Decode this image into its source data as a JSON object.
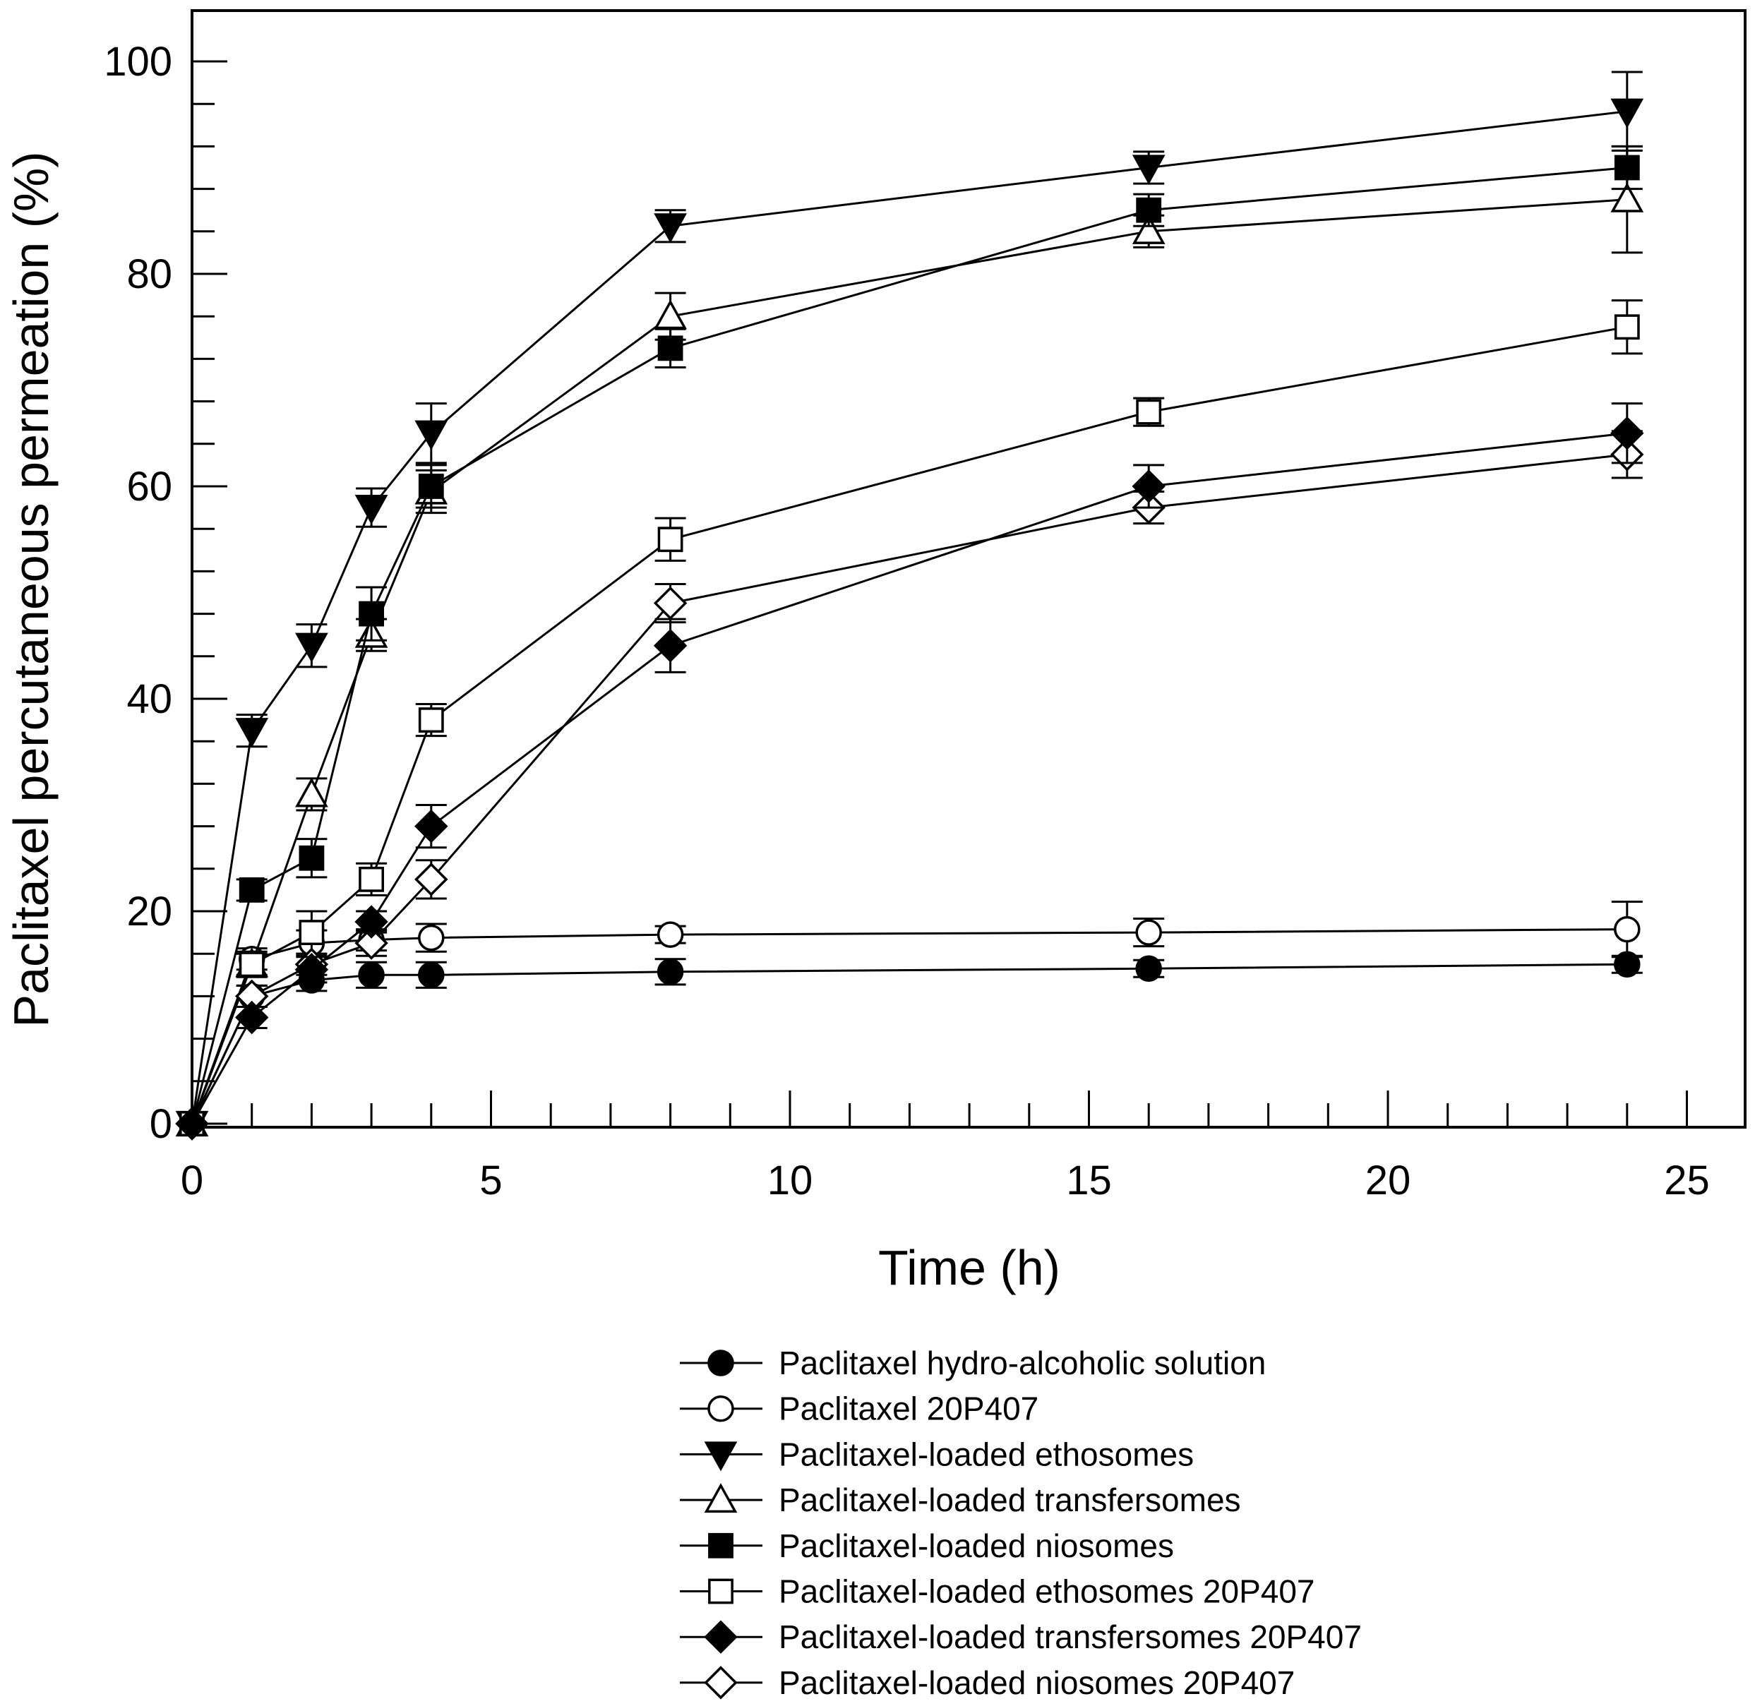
{
  "chart_data": {
    "type": "line",
    "title": "",
    "xlabel": "Time (h)",
    "ylabel": "Paclitaxel percutaneous permeation (%)",
    "xlim": [
      0,
      26
    ],
    "ylim": [
      0,
      105
    ],
    "xticks": [
      0,
      5,
      10,
      15,
      20,
      25
    ],
    "yticks": [
      0,
      20,
      40,
      60,
      80,
      100
    ],
    "grid": false,
    "legend_position": "bottom-center",
    "x": [
      0,
      1,
      2,
      3,
      4,
      8,
      16,
      24
    ],
    "series": [
      {
        "name": "Paclitaxel hydro-alcoholic solution",
        "marker": "circle",
        "filled": true,
        "values": [
          0,
          12,
          13.5,
          14,
          14,
          14.3,
          14.6,
          15
        ],
        "errors": [
          0,
          1,
          1,
          1.2,
          1.2,
          1.2,
          0.8,
          0.8
        ]
      },
      {
        "name": "Paclitaxel 20P407",
        "marker": "circle",
        "filled": false,
        "values": [
          0,
          15.5,
          17,
          17.3,
          17.5,
          17.8,
          18,
          18.3
        ],
        "errors": [
          0,
          1,
          1.2,
          1,
          1.3,
          0.8,
          1.3,
          2.6
        ]
      },
      {
        "name": "Paclitaxel-loaded ethosomes",
        "marker": "triangle-down",
        "filled": true,
        "values": [
          0,
          37,
          45,
          58,
          65,
          84.5,
          90,
          95.3
        ],
        "errors": [
          0,
          1.5,
          2,
          1.8,
          2.8,
          1.5,
          1.5,
          3.7
        ]
      },
      {
        "name": "Paclitaxel-loaded transfersomes",
        "marker": "triangle-up",
        "filled": false,
        "values": [
          0,
          15,
          31,
          46,
          59.5,
          76,
          84,
          87
        ],
        "errors": [
          0,
          1.2,
          1.5,
          1.5,
          2,
          2.2,
          1.5,
          5
        ]
      },
      {
        "name": "Paclitaxel-loaded niosomes",
        "marker": "square",
        "filled": true,
        "values": [
          0,
          22,
          25,
          48,
          60,
          73,
          86,
          90
        ],
        "errors": [
          0,
          1,
          1.8,
          2.5,
          2,
          1.8,
          1.5,
          2
        ]
      },
      {
        "name": "Paclitaxel-loaded ethosomes 20P407",
        "marker": "square",
        "filled": false,
        "values": [
          0,
          15,
          18,
          23,
          38,
          55,
          67,
          75
        ],
        "errors": [
          0,
          1,
          2,
          1.5,
          1.5,
          2,
          1.3,
          2.5
        ]
      },
      {
        "name": "Paclitaxel-loaded transfersomes 20P407",
        "marker": "diamond",
        "filled": true,
        "values": [
          0,
          10,
          14.5,
          19,
          28,
          45,
          60,
          65
        ],
        "errors": [
          0,
          1,
          1.2,
          1,
          2,
          2.5,
          2,
          2.8
        ]
      },
      {
        "name": "Paclitaxel-loaded niosomes 20P407",
        "marker": "diamond",
        "filled": false,
        "values": [
          0,
          12,
          15,
          17,
          23,
          49,
          58,
          63
        ],
        "errors": [
          0,
          1,
          1,
          1.2,
          1.8,
          1.8,
          1.5,
          2.2
        ]
      }
    ]
  }
}
